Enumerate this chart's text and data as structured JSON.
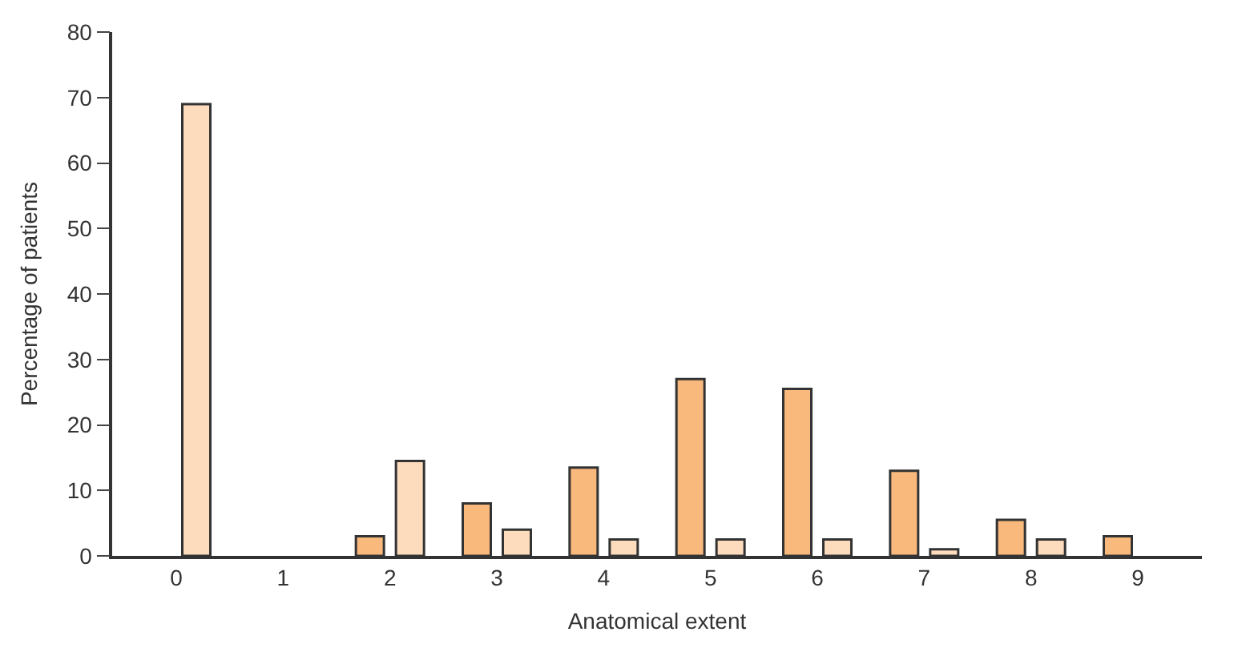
{
  "chart_data": {
    "type": "bar",
    "xlabel": "Anatomical extent",
    "ylabel": "Percentage of patients",
    "categories": [
      "0",
      "1",
      "2",
      "3",
      "4",
      "5",
      "6",
      "7",
      "8",
      "9"
    ],
    "series": [
      {
        "color": "#f9b87c",
        "values": [
          null,
          null,
          3,
          8,
          13.5,
          27,
          25.5,
          13,
          5.5,
          3
        ]
      },
      {
        "color": "#fddcbd",
        "values": [
          69,
          null,
          14.5,
          4,
          2.5,
          2.5,
          2.5,
          1,
          2.5,
          null
        ]
      }
    ],
    "ylim": [
      0,
      80
    ],
    "yticks": [
      0,
      10,
      20,
      30,
      40,
      50,
      60,
      70,
      80
    ]
  }
}
